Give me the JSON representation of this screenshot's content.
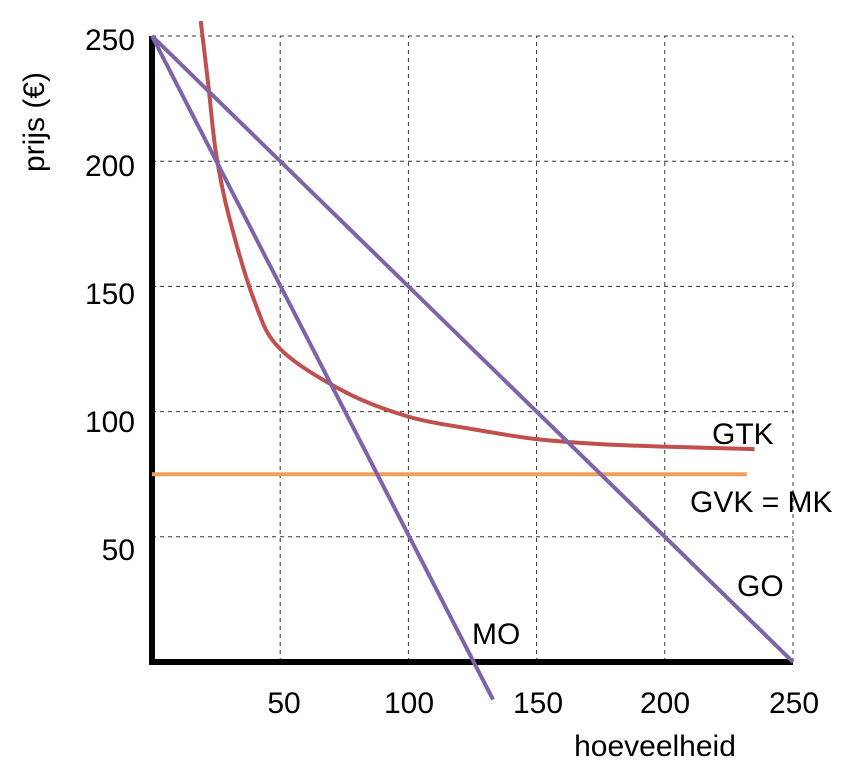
{
  "chart_data": {
    "type": "line",
    "title": "",
    "xlabel": "hoeveelheid",
    "ylabel": "prijs (€)",
    "xlim": [
      0,
      250
    ],
    "ylim": [
      0,
      250
    ],
    "x_ticks": [
      "50",
      "100",
      "150",
      "200",
      "250"
    ],
    "y_ticks": [
      "50",
      "100",
      "150",
      "200",
      "250"
    ],
    "grid": true,
    "colors": {
      "GO": "#7f63a8",
      "MO": "#7f63a8",
      "GTK": "#c0504d",
      "GVK_MK": "#f0a05a"
    },
    "series": [
      {
        "name": "GO",
        "type": "line",
        "points": [
          [
            0,
            250
          ],
          [
            250,
            0
          ]
        ]
      },
      {
        "name": "MO",
        "type": "line",
        "points": [
          [
            0,
            250
          ],
          [
            133,
            -15
          ]
        ]
      },
      {
        "name": "GTK",
        "type": "curve",
        "formula_points": [
          [
            19,
            256
          ],
          [
            22,
            230
          ],
          [
            25,
            203
          ],
          [
            30,
            178
          ],
          [
            40,
            144
          ],
          [
            50,
            125
          ],
          [
            75,
            108
          ],
          [
            100,
            98
          ],
          [
            125,
            93
          ],
          [
            150,
            89
          ],
          [
            175,
            87
          ],
          [
            200,
            86
          ],
          [
            235,
            85
          ]
        ]
      },
      {
        "name": "GVK = MK",
        "type": "line",
        "points": [
          [
            0,
            75
          ],
          [
            232,
            75
          ]
        ]
      }
    ]
  }
}
